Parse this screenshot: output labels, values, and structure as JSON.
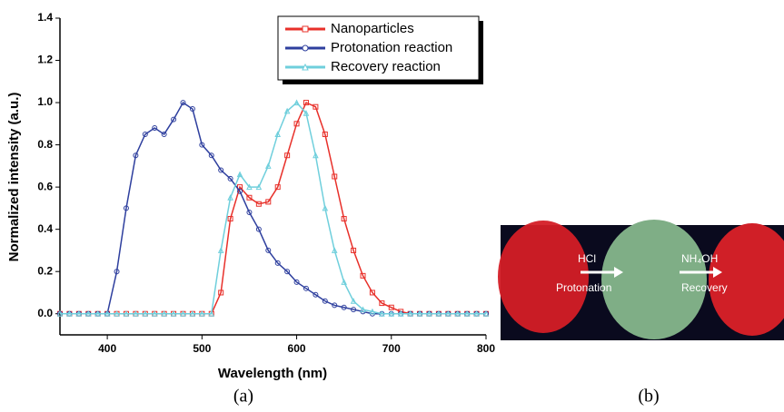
{
  "chart_data": {
    "type": "line",
    "x_label": "Wavelength (nm)",
    "y_label": "Normalized intensity (a.u.)",
    "xlim": [
      350,
      800
    ],
    "xticks": [
      400,
      500,
      600,
      700,
      800
    ],
    "ylim": [
      -0.1,
      1.4
    ],
    "yticks": [
      {
        "value": 0,
        "label": "0.0"
      },
      {
        "value": 0.2,
        "label": "0.2"
      },
      {
        "value": 0.4,
        "label": "0.4"
      },
      {
        "value": 0.6,
        "label": "0.6"
      },
      {
        "value": 0.8,
        "label": "0.8"
      },
      {
        "value": 1,
        "label": "1.0"
      },
      {
        "value": 1.2,
        "label": "1.2"
      },
      {
        "value": 1.4,
        "label": "1.4"
      }
    ],
    "legend": "top-right",
    "x": [
      350,
      360,
      370,
      380,
      390,
      400,
      410,
      420,
      430,
      440,
      450,
      460,
      470,
      480,
      490,
      500,
      510,
      520,
      530,
      540,
      550,
      560,
      570,
      580,
      590,
      600,
      610,
      620,
      630,
      640,
      650,
      660,
      670,
      680,
      690,
      700,
      710,
      720,
      730,
      740,
      750,
      760,
      770,
      780,
      790,
      800
    ],
    "series": [
      {
        "name": "Nanoparticles",
        "color": "#e8302a",
        "marker": "square",
        "values": [
          0,
          0,
          0,
          0,
          0,
          0,
          0,
          0,
          0,
          0,
          0,
          0,
          0,
          0,
          0,
          0,
          0,
          0.1,
          0.45,
          0.6,
          0.55,
          0.52,
          0.53,
          0.6,
          0.75,
          0.9,
          1.0,
          0.98,
          0.85,
          0.65,
          0.45,
          0.3,
          0.18,
          0.1,
          0.05,
          0.03,
          0.01,
          0,
          0,
          0,
          0,
          0,
          0,
          0,
          0,
          0
        ]
      },
      {
        "name": "Protonation reaction",
        "color": "#2e3f9e",
        "marker": "circle",
        "values": [
          0,
          0,
          0,
          0,
          0,
          0,
          0.2,
          0.5,
          0.75,
          0.85,
          0.88,
          0.85,
          0.92,
          1.0,
          0.97,
          0.8,
          0.75,
          0.68,
          0.64,
          0.58,
          0.48,
          0.4,
          0.3,
          0.24,
          0.2,
          0.15,
          0.12,
          0.09,
          0.06,
          0.04,
          0.03,
          0.02,
          0.01,
          0,
          0,
          0,
          0,
          0,
          0,
          0,
          0,
          0,
          0,
          0,
          0,
          0
        ]
      },
      {
        "name": "Recovery reaction",
        "color": "#6fcfdc",
        "marker": "triangle",
        "values": [
          0,
          0,
          0,
          0,
          0,
          0,
          0,
          0,
          0,
          0,
          0,
          0,
          0,
          0,
          0,
          0,
          0,
          0.3,
          0.55,
          0.66,
          0.6,
          0.6,
          0.7,
          0.85,
          0.96,
          1.0,
          0.95,
          0.75,
          0.5,
          0.3,
          0.15,
          0.06,
          0.02,
          0.01,
          0,
          0,
          0,
          0,
          0,
          0,
          0,
          0,
          0,
          0,
          0,
          0
        ]
      }
    ]
  },
  "photo": {
    "labels": [
      "HCl",
      "Protonation",
      "NH₄OH",
      "Recovery"
    ]
  },
  "captions": [
    "(a)",
    "(b)"
  ]
}
